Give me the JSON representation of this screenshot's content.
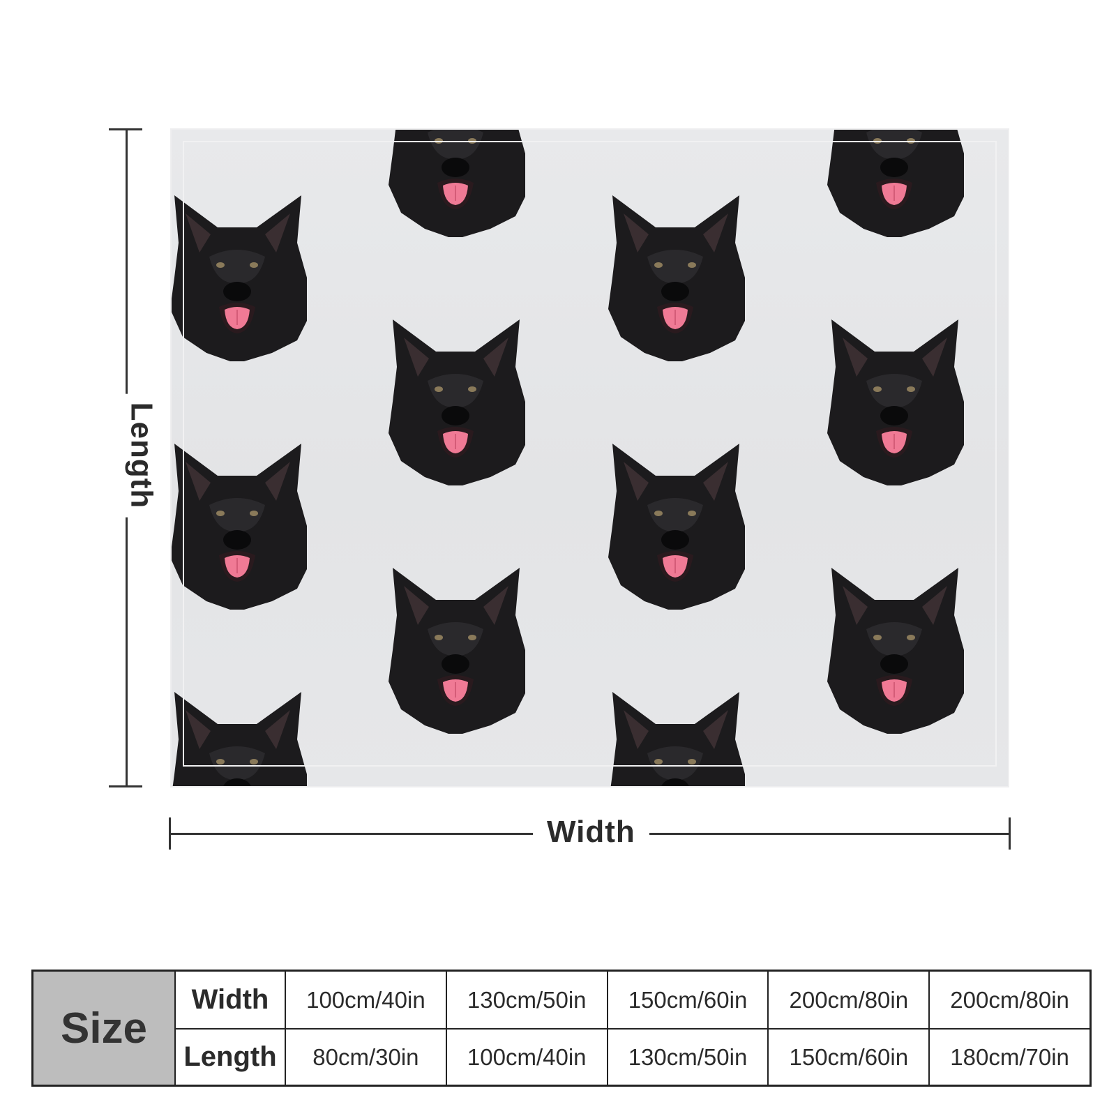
{
  "labels": {
    "length": "Length",
    "width": "Width"
  },
  "pattern": {
    "motif": "dog-head-icon",
    "background_color": "#e6e7e9",
    "fur_color": "#1c1b1d",
    "tongue_color": "#f07a95"
  },
  "size_table": {
    "header": "Size",
    "rows": [
      {
        "label": "Width",
        "values": [
          "100cm/40in",
          "130cm/50in",
          "150cm/60in",
          "200cm/80in",
          "200cm/80in"
        ]
      },
      {
        "label": "Length",
        "values": [
          "80cm/30in",
          "100cm/40in",
          "130cm/50in",
          "150cm/60in",
          "180cm/70in"
        ]
      }
    ]
  }
}
